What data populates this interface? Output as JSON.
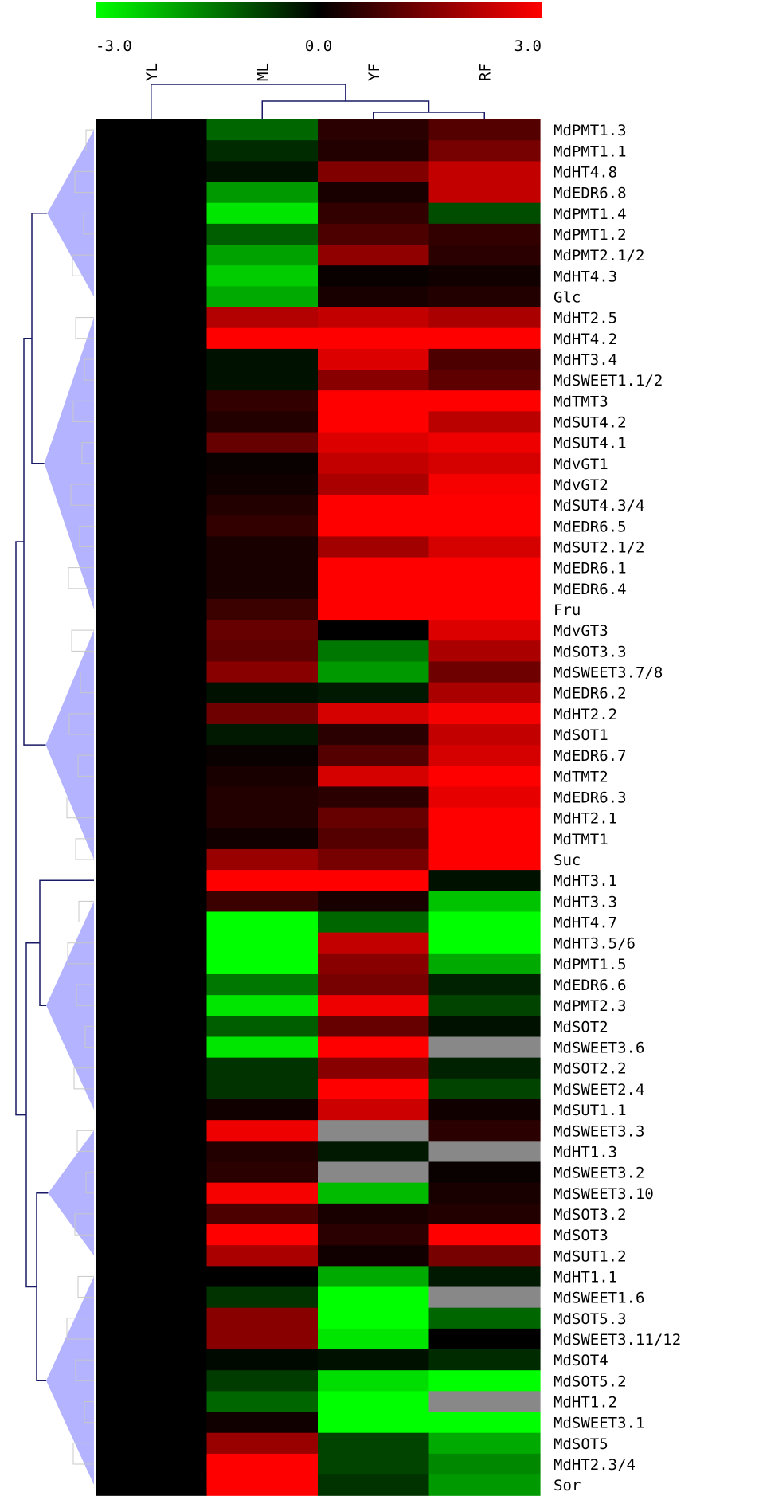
{
  "chart_data": {
    "type": "heatmap",
    "title": "",
    "color_scale": {
      "min": -3.0,
      "mid": 0.0,
      "max": 3.0,
      "min_label": "-3.0",
      "mid_label": "0.0",
      "max_label": "3.0",
      "low_color": "#00ff00",
      "mid_color": "#000000",
      "high_color": "#ff0000",
      "missing_color": "#888888"
    },
    "columns": [
      "YL",
      "ML",
      "YF",
      "RF"
    ],
    "rows": [
      {
        "label": "MdPMT1.3",
        "values": [
          0,
          -1.2,
          0.5,
          1.0
        ]
      },
      {
        "label": "MdPMT1.1",
        "values": [
          0,
          -0.5,
          0.4,
          1.4
        ]
      },
      {
        "label": "MdHT4.8",
        "values": [
          0,
          -0.2,
          1.5,
          2.3
        ]
      },
      {
        "label": "MdEDR6.8",
        "values": [
          0,
          -1.8,
          0.3,
          2.3
        ]
      },
      {
        "label": "MdPMT1.4",
        "values": [
          0,
          -2.7,
          0.6,
          -0.9
        ]
      },
      {
        "label": "MdPMT1.2",
        "values": [
          0,
          -1.1,
          0.9,
          0.6
        ]
      },
      {
        "label": "MdPMT2.1/2",
        "values": [
          0,
          -1.9,
          1.7,
          0.5
        ]
      },
      {
        "label": "MdHT4.3",
        "values": [
          0,
          -2.4,
          0.1,
          0.2
        ]
      },
      {
        "label": "Glc",
        "values": [
          0,
          -2.0,
          0.3,
          0.4
        ]
      },
      {
        "label": "MdHT2.5",
        "values": [
          0,
          2.1,
          2.3,
          2.0
        ]
      },
      {
        "label": "MdHT4.2",
        "values": [
          0,
          3.0,
          3.0,
          3.0
        ]
      },
      {
        "label": "MdHT3.4",
        "values": [
          0,
          -0.2,
          2.6,
          0.9
        ]
      },
      {
        "label": "MdSWEET1.1/2",
        "values": [
          0,
          -0.2,
          1.6,
          1.1
        ]
      },
      {
        "label": "MdTMT3",
        "values": [
          0,
          0.6,
          3.0,
          3.0
        ]
      },
      {
        "label": "MdSUT4.2",
        "values": [
          0,
          0.4,
          3.0,
          2.2
        ]
      },
      {
        "label": "MdSUT4.1",
        "values": [
          0,
          1.2,
          2.6,
          2.8
        ]
      },
      {
        "label": "MdvGT1",
        "values": [
          0,
          0.1,
          2.3,
          2.5
        ]
      },
      {
        "label": "MdvGT2",
        "values": [
          0,
          0.2,
          2.0,
          2.9
        ]
      },
      {
        "label": "MdSUT4.3/4",
        "values": [
          0,
          0.4,
          3.0,
          3.0
        ]
      },
      {
        "label": "MdEDR6.5",
        "values": [
          0,
          0.6,
          3.0,
          3.0
        ]
      },
      {
        "label": "MdSUT2.1/2",
        "values": [
          0,
          0.3,
          1.9,
          2.5
        ]
      },
      {
        "label": "MdEDR6.1",
        "values": [
          0,
          0.3,
          3.0,
          3.0
        ]
      },
      {
        "label": "MdEDR6.4",
        "values": [
          0,
          0.3,
          3.0,
          3.0
        ]
      },
      {
        "label": "Fru",
        "values": [
          0,
          0.7,
          3.0,
          3.0
        ]
      },
      {
        "label": "MdvGT3",
        "values": [
          0,
          1.2,
          0.0,
          2.6
        ]
      },
      {
        "label": "MdSOT3.3",
        "values": [
          0,
          1.1,
          -1.4,
          2.0
        ]
      },
      {
        "label": "MdSWEET3.7/8",
        "values": [
          0,
          1.6,
          -1.8,
          1.3
        ]
      },
      {
        "label": "MdEDR6.2",
        "values": [
          0,
          -0.2,
          -0.3,
          2.0
        ]
      },
      {
        "label": "MdHT2.2",
        "values": [
          0,
          1.3,
          2.5,
          2.9
        ]
      },
      {
        "label": "MdSOT1",
        "values": [
          0,
          -0.3,
          0.5,
          2.3
        ]
      },
      {
        "label": "MdEDR6.7",
        "values": [
          0,
          0.1,
          1.0,
          2.5
        ]
      },
      {
        "label": "MdTMT2",
        "values": [
          0,
          0.3,
          2.5,
          3.0
        ]
      },
      {
        "label": "MdEDR6.3",
        "values": [
          0,
          0.4,
          0.5,
          2.7
        ]
      },
      {
        "label": "MdHT2.1",
        "values": [
          0,
          0.4,
          1.2,
          3.0
        ]
      },
      {
        "label": "MdTMT1",
        "values": [
          0,
          0.2,
          1.0,
          3.0
        ]
      },
      {
        "label": "Suc",
        "values": [
          0,
          1.8,
          1.4,
          3.0
        ]
      },
      {
        "label": "MdHT3.1",
        "values": [
          0,
          3.0,
          3.0,
          -0.2
        ]
      },
      {
        "label": "MdHT3.3",
        "values": [
          0,
          0.7,
          0.3,
          -2.3
        ]
      },
      {
        "label": "MdHT4.7",
        "values": [
          0,
          -3.0,
          -1.2,
          -3.0
        ]
      },
      {
        "label": "MdHT3.5/6",
        "values": [
          0,
          -3.0,
          2.3,
          -3.0
        ]
      },
      {
        "label": "MdPMT1.5",
        "values": [
          0,
          -3.0,
          1.6,
          -2.0
        ]
      },
      {
        "label": "MdEDR6.6",
        "values": [
          0,
          -1.4,
          1.4,
          -0.4
        ]
      },
      {
        "label": "MdPMT2.3",
        "values": [
          0,
          -2.7,
          2.8,
          -0.8
        ]
      },
      {
        "label": "MdSOT2",
        "values": [
          0,
          -1.1,
          1.2,
          -0.2
        ]
      },
      {
        "label": "MdSWEET3.6",
        "values": [
          0,
          -2.7,
          3.0,
          null
        ]
      },
      {
        "label": "MdSOT2.2",
        "values": [
          0,
          -0.6,
          1.6,
          -0.4
        ]
      },
      {
        "label": "MdSWEET2.4",
        "values": [
          0,
          -0.6,
          3.0,
          -0.8
        ]
      },
      {
        "label": "MdSUT1.1",
        "values": [
          0,
          0.2,
          2.4,
          0.2
        ]
      },
      {
        "label": "MdSWEET3.3",
        "values": [
          0,
          2.8,
          null,
          0.5
        ]
      },
      {
        "label": "MdHT1.3",
        "values": [
          0,
          0.4,
          -0.3,
          null
        ]
      },
      {
        "label": "MdSWEET3.2",
        "values": [
          0,
          0.5,
          null,
          0.1
        ]
      },
      {
        "label": "MdSWEET3.10",
        "values": [
          0,
          2.9,
          -2.2,
          0.3
        ]
      },
      {
        "label": "MdSOT3.2",
        "values": [
          0,
          0.9,
          0.3,
          0.4
        ]
      },
      {
        "label": "MdSOT3",
        "values": [
          0,
          3.0,
          0.5,
          3.0
        ]
      },
      {
        "label": "MdSUT1.2",
        "values": [
          0,
          2.0,
          0.2,
          1.4
        ]
      },
      {
        "label": "MdHT1.1",
        "values": [
          0,
          0.0,
          -2.0,
          -0.3
        ]
      },
      {
        "label": "MdSWEET1.6",
        "values": [
          0,
          -0.6,
          -3.0,
          null
        ]
      },
      {
        "label": "MdSOT5.3",
        "values": [
          0,
          1.6,
          -3.0,
          -1.2
        ]
      },
      {
        "label": "MdSWEET3.11/12",
        "values": [
          0,
          1.6,
          -2.7,
          0.0
        ]
      },
      {
        "label": "MdSOT4",
        "values": [
          0,
          -0.1,
          -0.2,
          -0.5
        ]
      },
      {
        "label": "MdSOT5.2",
        "values": [
          0,
          -0.7,
          -2.6,
          -3.0
        ]
      },
      {
        "label": "MdHT1.2",
        "values": [
          0,
          -1.2,
          -3.0,
          null
        ]
      },
      {
        "label": "MdSWEET3.1",
        "values": [
          0,
          0.2,
          -3.0,
          -3.0
        ]
      },
      {
        "label": "MdSOT5",
        "values": [
          0,
          1.8,
          -0.8,
          -2.0
        ]
      },
      {
        "label": "MdHT2.3/4",
        "values": [
          0,
          3.0,
          -0.8,
          -1.6
        ]
      },
      {
        "label": "Sor",
        "values": [
          0,
          3.0,
          -0.6,
          -1.8
        ]
      }
    ],
    "row_clusters": [
      {
        "first": 0,
        "last": 8
      },
      {
        "first": 9,
        "last": 23
      },
      {
        "first": 24,
        "last": 35
      },
      {
        "first": 36,
        "last": 36
      },
      {
        "first": 37,
        "last": 47
      },
      {
        "first": 48,
        "last": 54
      },
      {
        "first": 55,
        "last": 65
      }
    ],
    "cluster_fill": "#b3b3ff",
    "dendrogram_color": "#1a1a66",
    "subtree_color": "#c8c8c8"
  }
}
